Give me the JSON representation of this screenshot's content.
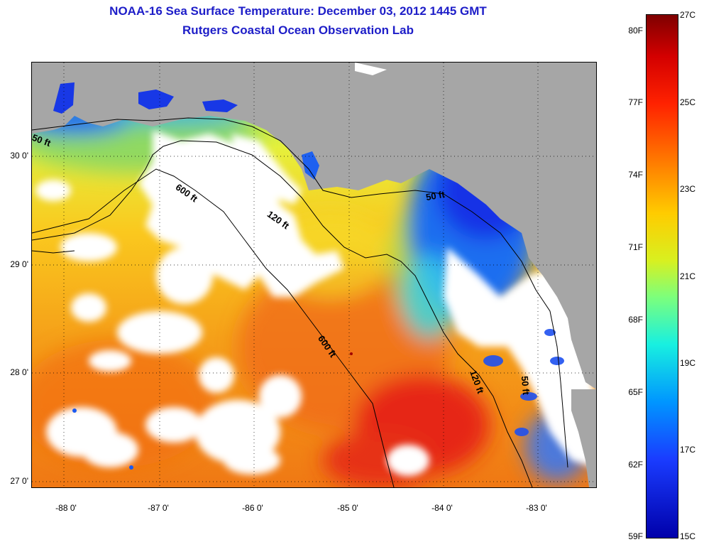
{
  "header": {
    "title": "NOAA-16 Sea Surface Temperature:  December 03, 2012 1445 GMT",
    "subtitle": "Rutgers Coastal Ocean Observation Lab"
  },
  "map": {
    "longitude_ticks": [
      "-88 0'",
      "-87 0'",
      "-86 0'",
      "-85 0'",
      "-84 0'",
      "-83 0'"
    ],
    "latitude_ticks": [
      "30 0'",
      "29 0'",
      "28 0'",
      "27 0'"
    ],
    "contour_labels": [
      "50 ft",
      "600 ft",
      "120 ft",
      "50 ft",
      "600 ft",
      "120 ft",
      "50 ft"
    ],
    "colors": {
      "land": "#a6a6a6",
      "cloud": "#ffffff",
      "cold": "#1430e6",
      "cool": "#19c8f0",
      "mid": "#f0e628",
      "warm": "#f58c14",
      "hot": "#e62814"
    }
  },
  "colorbar": {
    "fahrenheit_labels": [
      "80F",
      "77F",
      "74F",
      "71F",
      "68F",
      "65F",
      "62F",
      "59F"
    ],
    "celsius_labels": [
      "27C",
      "25C",
      "23C",
      "21C",
      "19C",
      "17C",
      "15C"
    ],
    "range_celsius": [
      15,
      27
    ],
    "range_fahrenheit": [
      59,
      80.6
    ],
    "colormap": "jet"
  }
}
